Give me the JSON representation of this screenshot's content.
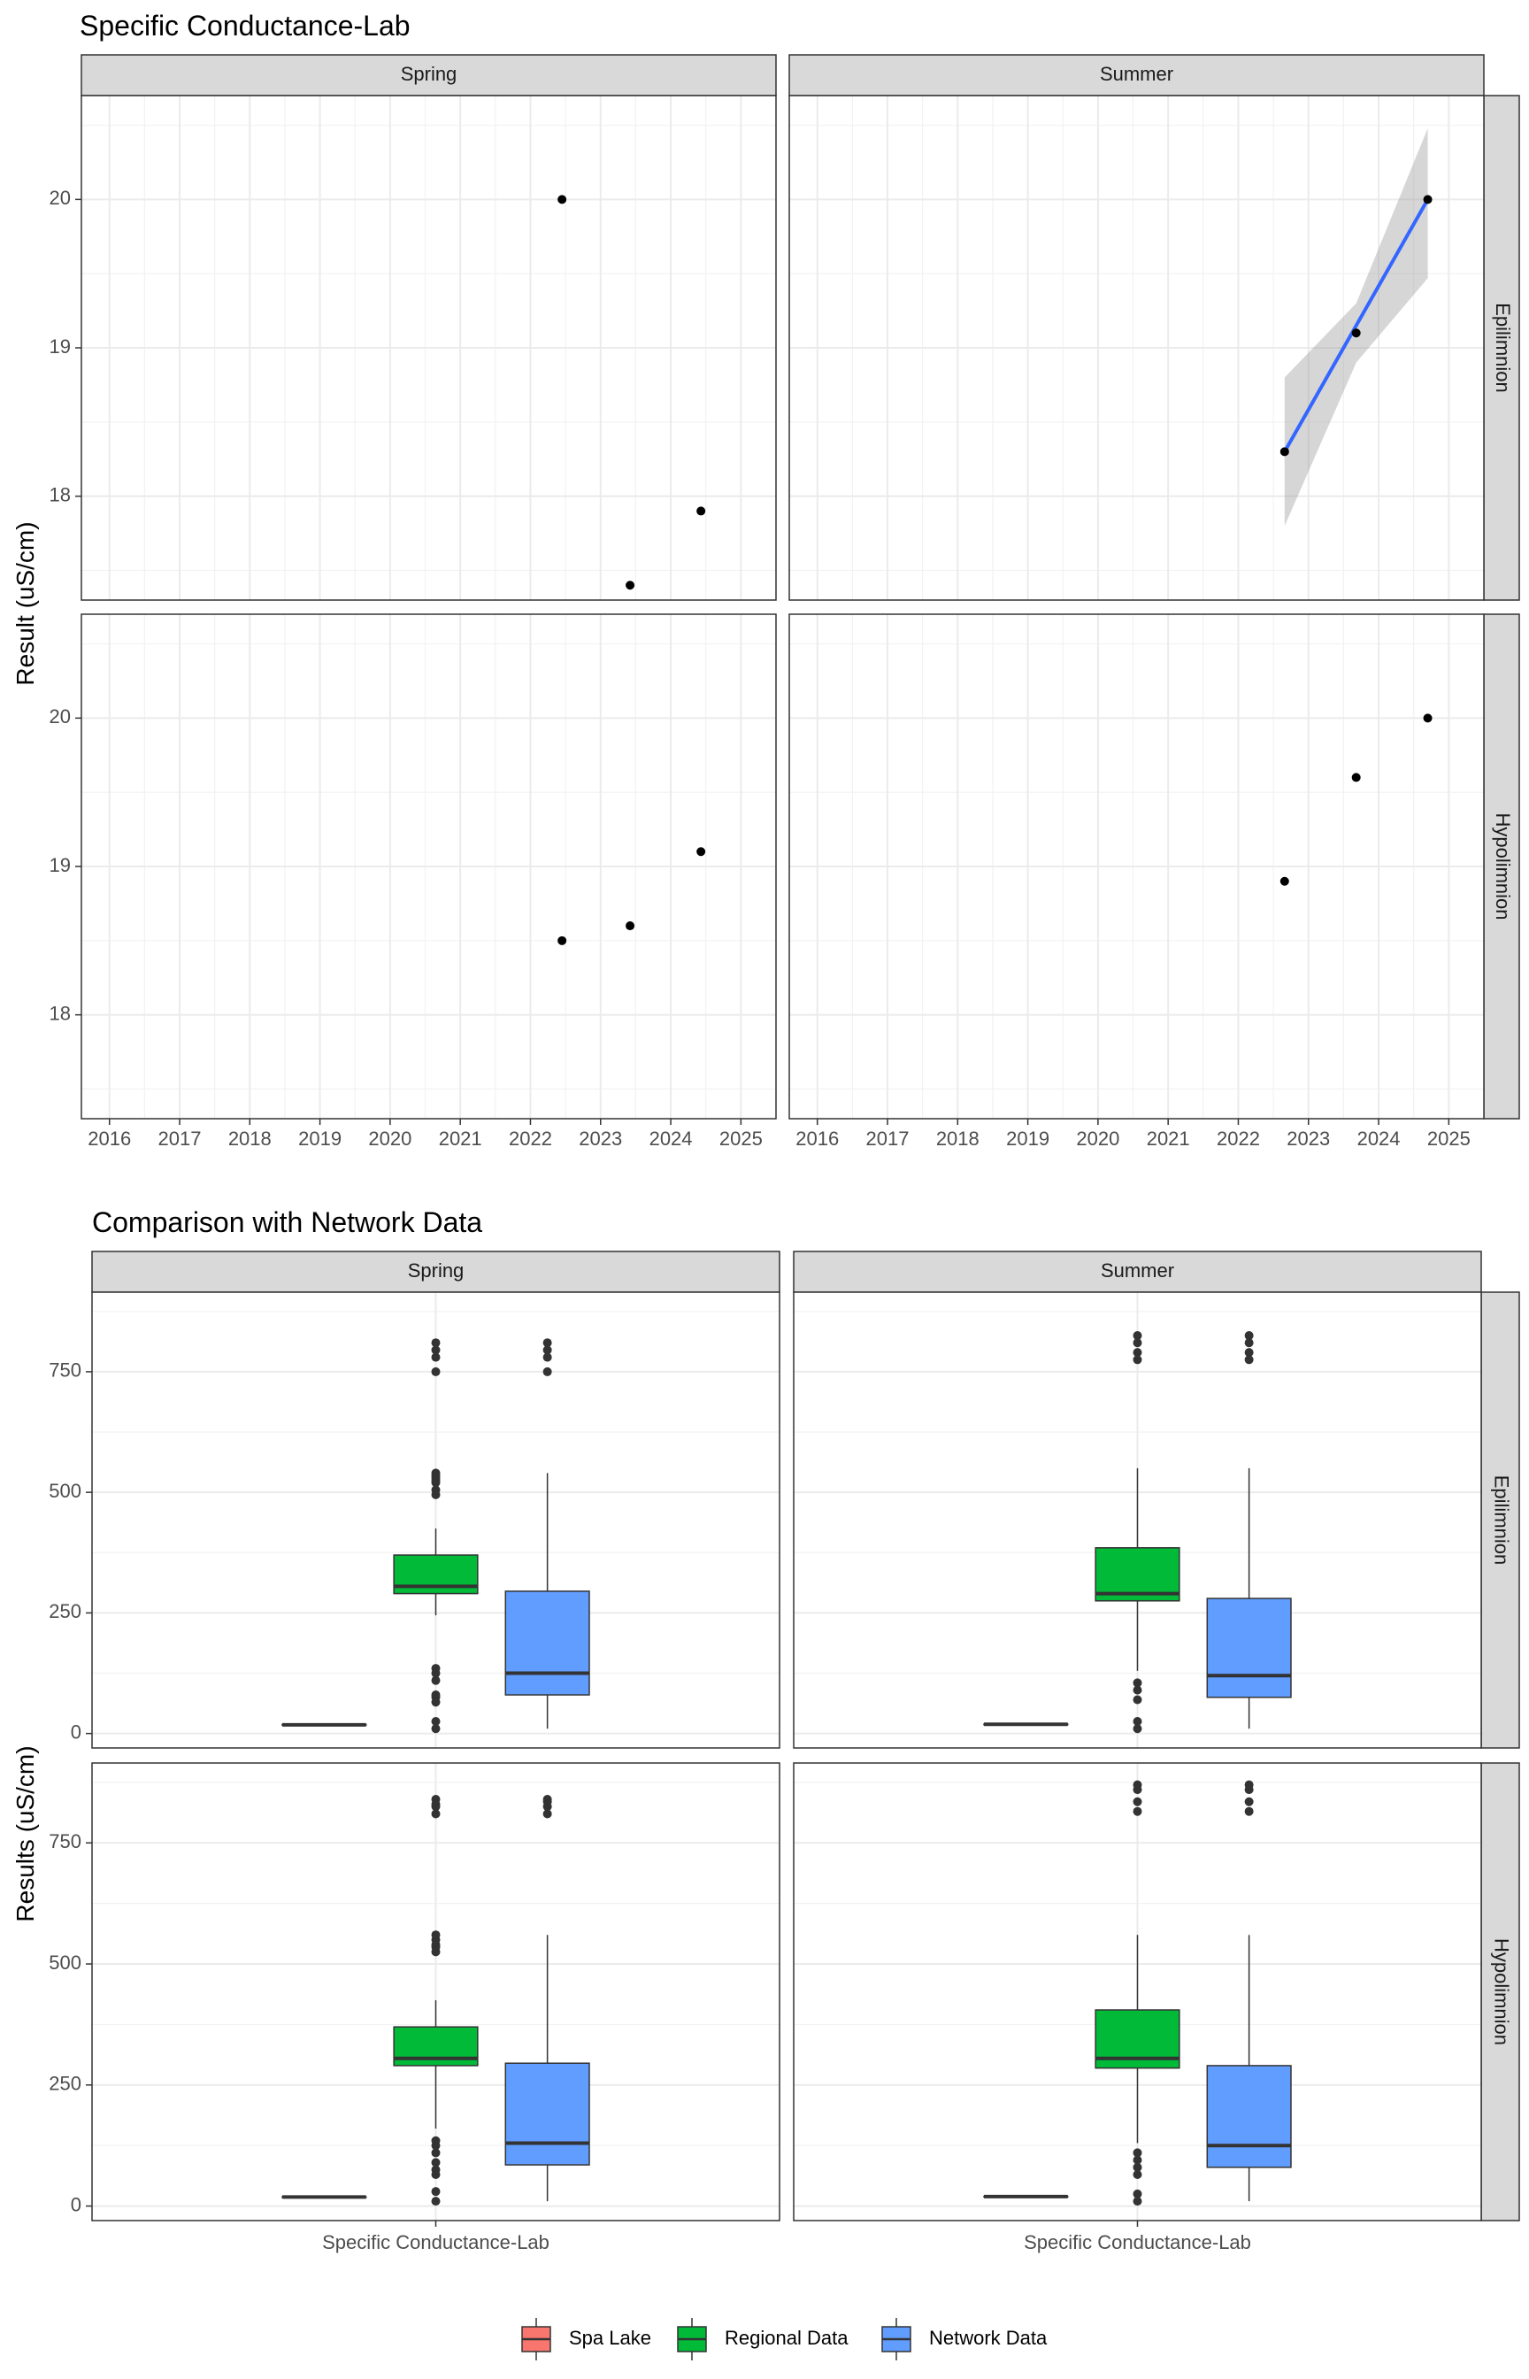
{
  "chart_data": [
    {
      "type": "scatter",
      "title": "Specific Conductance-Lab",
      "ylabel": "Result (uS/cm)",
      "xlabel": "",
      "x_ticks": [
        "2016",
        "2017",
        "2018",
        "2019",
        "2020",
        "2021",
        "2022",
        "2023",
        "2024",
        "2025"
      ],
      "xlim": [
        2015.6,
        2025.5
      ],
      "y_ticks": [
        "18",
        "19",
        "20"
      ],
      "ylim": [
        17.3,
        20.7
      ],
      "col_facets": [
        "Spring",
        "Summer"
      ],
      "row_facets": [
        "Epilimnion",
        "Hypolimnion"
      ],
      "panels": [
        {
          "col": "Spring",
          "row": "Epilimnion",
          "points": [
            {
              "x": 2022.45,
              "y": 20.0
            },
            {
              "x": 2023.42,
              "y": 17.4
            },
            {
              "x": 2024.43,
              "y": 17.9
            }
          ]
        },
        {
          "col": "Summer",
          "row": "Epilimnion",
          "points": [
            {
              "x": 2022.66,
              "y": 18.3
            },
            {
              "x": 2023.68,
              "y": 19.1
            },
            {
              "x": 2024.7,
              "y": 20.0
            }
          ],
          "trend": {
            "x": [
              2022.66,
              2024.7
            ],
            "y": [
              18.3,
              20.0
            ],
            "ci_upper": [
              18.8,
              20.48
            ],
            "ci_lower": [
              17.8,
              19.47
            ],
            "ci_mid_x": 2023.68,
            "ci_mid_upper": 19.3,
            "ci_mid_lower": 18.9
          }
        },
        {
          "col": "Spring",
          "row": "Hypolimnion",
          "points": [
            {
              "x": 2022.45,
              "y": 18.5
            },
            {
              "x": 2023.42,
              "y": 18.6
            },
            {
              "x": 2024.43,
              "y": 19.1
            }
          ]
        },
        {
          "col": "Summer",
          "row": "Hypolimnion",
          "points": [
            {
              "x": 2022.66,
              "y": 18.9
            },
            {
              "x": 2023.68,
              "y": 19.6
            },
            {
              "x": 2024.7,
              "y": 20.0
            }
          ]
        }
      ]
    },
    {
      "type": "box",
      "title": "Comparison with Network Data",
      "ylabel": "Results (uS/cm)",
      "xlabel": "",
      "x_category": "Specific Conductance-Lab",
      "y_ticks": [
        "0",
        "250",
        "500",
        "750"
      ],
      "ylim": [
        -30,
        915
      ],
      "col_facets": [
        "Spring",
        "Summer"
      ],
      "row_facets": [
        "Epilimnion",
        "Hypolimnion"
      ],
      "legend": {
        "position": "bottom",
        "entries": [
          {
            "label": "Spa Lake",
            "color": "#F8766D"
          },
          {
            "label": "Regional Data",
            "color": "#00BA38"
          },
          {
            "label": "Network Data",
            "color": "#619CFF"
          }
        ]
      },
      "panels": [
        {
          "col": "Spring",
          "row": "Epilimnion",
          "boxes": [
            {
              "group": "Spa Lake",
              "q1": 17.4,
              "median": 17.9,
              "q3": 18.7,
              "whisker_low": 17.4,
              "whisker_high": 20.0,
              "outliers": []
            },
            {
              "group": "Regional Data",
              "q1": 290,
              "median": 305,
              "q3": 370,
              "whisker_low": 245,
              "whisker_high": 425,
              "outliers": [
                10,
                25,
                65,
                75,
                80,
                110,
                125,
                135,
                495,
                505,
                520,
                525,
                530,
                535,
                540,
                750,
                780,
                795,
                810
              ]
            },
            {
              "group": "Network Data",
              "q1": 80,
              "median": 125,
              "q3": 295,
              "whisker_low": 10,
              "whisker_high": 540,
              "outliers": [
                750,
                780,
                795,
                810
              ]
            }
          ]
        },
        {
          "col": "Summer",
          "row": "Epilimnion",
          "boxes": [
            {
              "group": "Spa Lake",
              "q1": 18.3,
              "median": 19.1,
              "q3": 19.5,
              "whisker_low": 18.3,
              "whisker_high": 20.0,
              "outliers": []
            },
            {
              "group": "Regional Data",
              "q1": 275,
              "median": 290,
              "q3": 385,
              "whisker_low": 130,
              "whisker_high": 550,
              "outliers": [
                10,
                25,
                70,
                90,
                105,
                775,
                790,
                810,
                825
              ]
            },
            {
              "group": "Network Data",
              "q1": 75,
              "median": 120,
              "q3": 280,
              "whisker_low": 10,
              "whisker_high": 550,
              "outliers": [
                775,
                790,
                810,
                825
              ]
            }
          ]
        },
        {
          "col": "Spring",
          "row": "Hypolimnion",
          "boxes": [
            {
              "group": "Spa Lake",
              "q1": 18.5,
              "median": 18.6,
              "q3": 18.9,
              "whisker_low": 18.5,
              "whisker_high": 19.1,
              "outliers": []
            },
            {
              "group": "Regional Data",
              "q1": 290,
              "median": 305,
              "q3": 370,
              "whisker_low": 160,
              "whisker_high": 425,
              "outliers": [
                10,
                30,
                65,
                75,
                90,
                110,
                125,
                135,
                525,
                535,
                540,
                550,
                560,
                810,
                825,
                830,
                840
              ]
            },
            {
              "group": "Network Data",
              "q1": 85,
              "median": 130,
              "q3": 295,
              "whisker_low": 10,
              "whisker_high": 560,
              "outliers": [
                810,
                825,
                835,
                840
              ]
            }
          ]
        },
        {
          "col": "Summer",
          "row": "Hypolimnion",
          "boxes": [
            {
              "group": "Spa Lake",
              "q1": 18.9,
              "median": 19.6,
              "q3": 19.8,
              "whisker_low": 18.9,
              "whisker_high": 20.0,
              "outliers": []
            },
            {
              "group": "Regional Data",
              "q1": 285,
              "median": 305,
              "q3": 405,
              "whisker_low": 130,
              "whisker_high": 560,
              "outliers": [
                10,
                25,
                65,
                80,
                95,
                110,
                815,
                835,
                860,
                870
              ]
            },
            {
              "group": "Network Data",
              "q1": 80,
              "median": 125,
              "q3": 290,
              "whisker_low": 10,
              "whisker_high": 560,
              "outliers": [
                815,
                835,
                860,
                870
              ]
            }
          ]
        }
      ]
    }
  ]
}
